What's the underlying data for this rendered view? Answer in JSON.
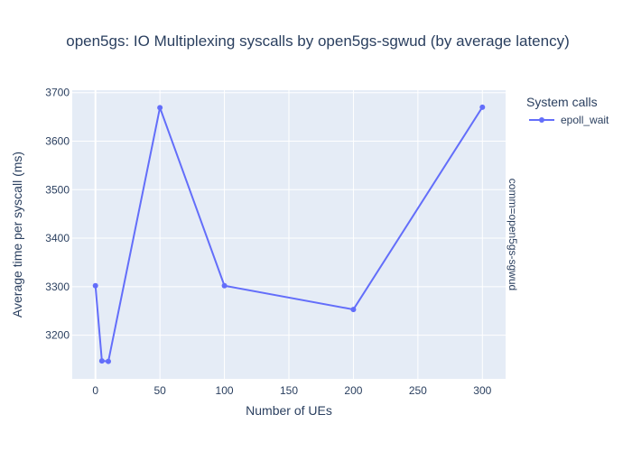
{
  "chart_data": {
    "type": "line",
    "title": "open5gs: IO Multiplexing syscalls by open5gs-sgwud (by average latency)",
    "xlabel": "Number of UEs",
    "ylabel": "Average time per syscall (ms)",
    "xlim": [
      -18,
      318
    ],
    "ylim": [
      3110,
      3705
    ],
    "x_ticks": [
      0,
      50,
      100,
      150,
      200,
      250,
      300
    ],
    "y_ticks": [
      3200,
      3300,
      3400,
      3500,
      3600,
      3700
    ],
    "grid": true,
    "legend": {
      "title": "System calls",
      "placement": "top-right outside"
    },
    "facet_label": "comm=open5gs-sgwud",
    "series": [
      {
        "name": "epoll_wait",
        "color": "#636efa",
        "x": [
          0,
          5,
          10,
          50,
          100,
          200,
          300
        ],
        "y": [
          3302,
          3147,
          3146,
          3669,
          3302,
          3253,
          3670
        ]
      }
    ]
  }
}
